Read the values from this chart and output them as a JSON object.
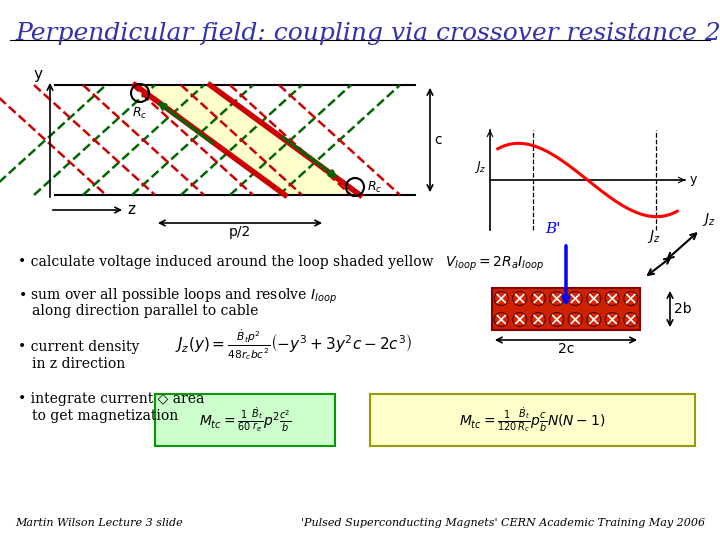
{
  "title": "Perpendicular field: coupling via crossover resistance 2",
  "title_color": "#3333aa",
  "title_fontsize": 18,
  "bg_color": "#ffffff",
  "footer_left": "Martin Wilson Lecture 3 slide",
  "footer_right": "'Pulsed Superconducting Magnets' CERN Academic Training May 2006",
  "formula1": "$V_{loop} = 2R_a I_{loop}$",
  "cable_fill": "#ffffcc",
  "red_strand_color": "#cc0000",
  "green_strand_color": "#006600",
  "cable_rect_color": "#cc2200",
  "green_box_color": "#ccffcc",
  "yellow_box_color": "#ffffcc"
}
